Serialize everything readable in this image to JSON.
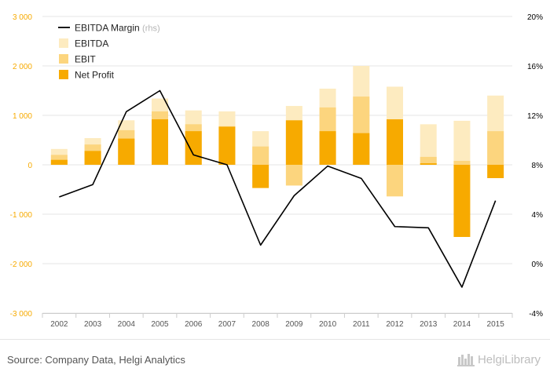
{
  "chart_data": {
    "type": "bar",
    "categories": [
      "2002",
      "2003",
      "2004",
      "2005",
      "2006",
      "2007",
      "2008",
      "2009",
      "2010",
      "2011",
      "2012",
      "2013",
      "2014",
      "2015"
    ],
    "bar_mode": "overlay",
    "series": [
      {
        "name": "EBITDA",
        "kind": "bar",
        "axis": "left",
        "color": "#FDEBC0",
        "values": [
          320,
          540,
          900,
          1340,
          1100,
          1080,
          680,
          1190,
          1540,
          2000,
          1580,
          820,
          890,
          1400
        ]
      },
      {
        "name": "EBIT",
        "kind": "bar",
        "axis": "left",
        "color": "#FCD57E",
        "values": [
          200,
          410,
          700,
          1080,
          820,
          780,
          370,
          -420,
          1160,
          1380,
          -640,
          160,
          80,
          680
        ]
      },
      {
        "name": "Net Profit",
        "kind": "bar",
        "axis": "left",
        "color": "#F7AA00",
        "values": [
          100,
          280,
          530,
          920,
          680,
          770,
          -470,
          900,
          680,
          640,
          920,
          30,
          -1460,
          -270
        ]
      },
      {
        "name": "EBITDA Margin",
        "legend_suffix": "(rhs)",
        "kind": "line",
        "axis": "right",
        "color": "#000000",
        "unit": "%",
        "values": [
          5.4,
          6.4,
          12.3,
          14.0,
          8.8,
          8.0,
          1.5,
          5.5,
          7.9,
          6.9,
          3.0,
          2.9,
          -1.9,
          5.1
        ]
      }
    ],
    "y_left": {
      "ylim": [
        -3000,
        3000
      ],
      "ticks": [
        -3000,
        -2000,
        -1000,
        0,
        1000,
        2000,
        3000
      ],
      "tick_labels": [
        "-3 000",
        "-2 000",
        "-1 000",
        "0",
        "1 000",
        "2 000",
        "3 000"
      ],
      "color": "#F7AA00"
    },
    "y_right": {
      "ylim": [
        -4,
        20
      ],
      "ticks": [
        -4,
        0,
        4,
        8,
        12,
        16,
        20
      ],
      "tick_labels": [
        "-4%",
        "0%",
        "4%",
        "8%",
        "12%",
        "16%",
        "20%"
      ],
      "color": "#000000"
    },
    "grid": true,
    "legend_position": "top-left"
  },
  "footer": {
    "source": "Source: Company Data, Helgi Analytics",
    "brand": "HelgiLibrary"
  }
}
